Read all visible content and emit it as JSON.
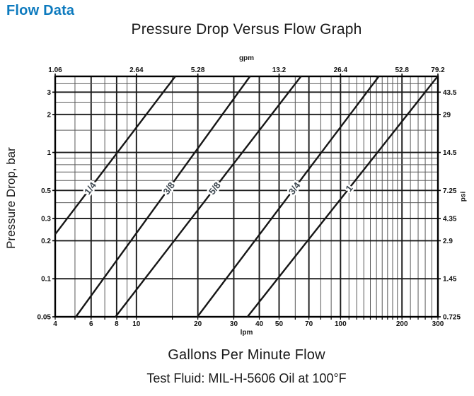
{
  "page": {
    "heading": "Flow Data",
    "heading_color": "#0d7abe"
  },
  "chart": {
    "title": "Pressure Drop Versus Flow Graph",
    "top_axis_unit": "gpm",
    "bottom_axis_unit": "lpm",
    "left_axis_label": "Pressure Drop, bar",
    "right_axis_unit": "psi",
    "caption": "Gallons Per Minute Flow",
    "subcaption": "Test Fluid: MIL-H-5606 Oil at 100°F"
  },
  "chart_data": {
    "type": "line",
    "x_scale": "log",
    "y_scale": "log",
    "x_range_lpm": [
      4,
      300
    ],
    "y_range_bar": [
      0.05,
      4
    ],
    "grid": "on",
    "x_ticks_bottom_lpm": [
      4,
      6,
      8,
      10,
      20,
      30,
      40,
      50,
      70,
      100,
      200,
      300
    ],
    "x_ticks_top_gpm": [
      {
        "label": "1.06",
        "lpm": 4
      },
      {
        "label": "2.64",
        "lpm": 10
      },
      {
        "label": "5.28",
        "lpm": 20
      },
      {
        "label": "13.2",
        "lpm": 50
      },
      {
        "label": "26.4",
        "lpm": 100
      },
      {
        "label": "52.8",
        "lpm": 200
      },
      {
        "label": "79.2",
        "lpm": 300
      }
    ],
    "y_ticks_left_bar": [
      3,
      2,
      1,
      0.5,
      0.3,
      0.2,
      0.1,
      0.05
    ],
    "y_ticks_right_psi": [
      {
        "label": "43.5",
        "bar": 3
      },
      {
        "label": "29",
        "bar": 2
      },
      {
        "label": "14.5",
        "bar": 1
      },
      {
        "label": "7.25",
        "bar": 0.5
      },
      {
        "label": "4.35",
        "bar": 0.3
      },
      {
        "label": "2.9",
        "bar": 0.2
      },
      {
        "label": "1.45",
        "bar": 0.1
      },
      {
        "label": "0.725",
        "bar": 0.05
      }
    ],
    "x_gridlines_lpm": [
      4,
      5,
      6,
      7,
      8,
      9,
      10,
      15,
      20,
      30,
      40,
      50,
      60,
      70,
      80,
      90,
      100,
      110,
      120,
      130,
      140,
      150,
      160,
      170,
      180,
      190,
      200,
      220,
      240,
      260,
      280,
      300
    ],
    "y_gridlines_bar": [
      0.05,
      0.1,
      0.2,
      0.3,
      0.4,
      0.5,
      0.6,
      0.7,
      0.8,
      0.9,
      1,
      1.5,
      2,
      2.5,
      3,
      3.5,
      4
    ],
    "series": [
      {
        "name": "1/4",
        "points_lpm_bar": [
          [
            4,
            0.225
          ],
          [
            15.5,
            4
          ]
        ]
      },
      {
        "name": "3/8",
        "points_lpm_bar": [
          [
            5.05,
            0.05
          ],
          [
            36,
            4
          ]
        ]
      },
      {
        "name": "5/8",
        "points_lpm_bar": [
          [
            7.9,
            0.05
          ],
          [
            64,
            4
          ]
        ]
      },
      {
        "name": "3/4",
        "points_lpm_bar": [
          [
            19.9,
            0.05
          ],
          [
            154,
            4
          ]
        ]
      },
      {
        "name": "1",
        "points_lpm_bar": [
          [
            35,
            0.05
          ],
          [
            299,
            4
          ]
        ]
      }
    ],
    "line_label_anchor_bar": 0.52,
    "colors": {
      "border": "#000000",
      "major_grid": "#1a1a1a",
      "minor_grid": "#5a5a5a",
      "series_line": "#161616"
    }
  }
}
